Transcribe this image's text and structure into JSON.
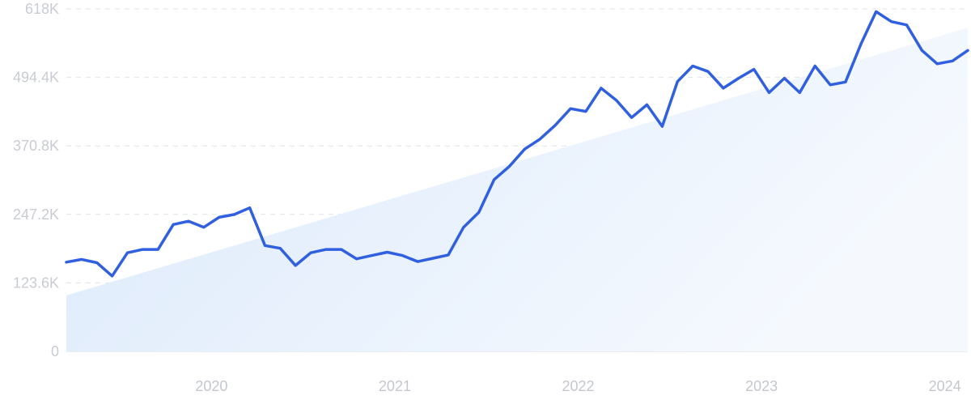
{
  "chart_data": {
    "type": "line",
    "title": "",
    "xlabel": "",
    "ylabel": "",
    "y_ticks": [
      "0",
      "123.6K",
      "247.2K",
      "370.8K",
      "494.4K",
      "618K"
    ],
    "ylim": [
      0,
      618000
    ],
    "x_ticks": [
      "2020",
      "2021",
      "2022",
      "2023",
      "2024"
    ],
    "xlim": [
      "2019-09",
      "2024-08"
    ],
    "grid": true,
    "colors": {
      "line": "#3060e0",
      "trend_fill": "#dbe9fb",
      "grid": "#dfe3ea"
    },
    "trend": {
      "start": [
        "2019-09",
        101000
      ],
      "end": [
        "2024-08",
        584000
      ]
    },
    "series": [
      {
        "x": [
          "2019-09",
          "2019-10",
          "2019-11",
          "2019-12",
          "2020-01",
          "2020-02",
          "2020-03",
          "2020-04",
          "2020-05",
          "2020-06",
          "2020-07",
          "2020-08",
          "2020-09",
          "2020-10",
          "2020-11",
          "2020-12",
          "2021-01",
          "2021-02",
          "2021-03",
          "2021-04",
          "2021-05",
          "2021-06",
          "2021-07",
          "2021-08",
          "2021-09",
          "2021-10",
          "2021-11",
          "2021-12",
          "2022-01",
          "2022-02",
          "2022-03",
          "2022-04",
          "2022-05",
          "2022-06",
          "2022-07",
          "2022-08",
          "2022-09",
          "2022-10",
          "2022-11",
          "2022-12",
          "2023-01",
          "2023-02",
          "2023-03",
          "2023-04",
          "2023-05",
          "2023-06",
          "2023-07",
          "2023-08",
          "2023-09",
          "2023-10",
          "2023-11",
          "2023-12",
          "2024-01",
          "2024-02",
          "2024-03",
          "2024-04",
          "2024-05",
          "2024-06",
          "2024-07",
          "2024-08"
        ],
        "values": [
          161000,
          166000,
          160000,
          136000,
          178000,
          184000,
          184000,
          229000,
          235000,
          224000,
          242000,
          247000,
          259000,
          191000,
          186000,
          155000,
          178000,
          184000,
          184000,
          167000,
          173000,
          179000,
          173000,
          162000,
          168000,
          174000,
          224000,
          251000,
          310000,
          334000,
          365000,
          383000,
          408000,
          438000,
          433000,
          475000,
          453000,
          422000,
          445000,
          406000,
          487000,
          515000,
          505000,
          475000,
          493000,
          509000,
          467000,
          493000,
          467000,
          515000,
          481000,
          486000,
          554000,
          613000,
          595000,
          589000,
          543000,
          519000,
          524000,
          543000
        ]
      }
    ]
  }
}
